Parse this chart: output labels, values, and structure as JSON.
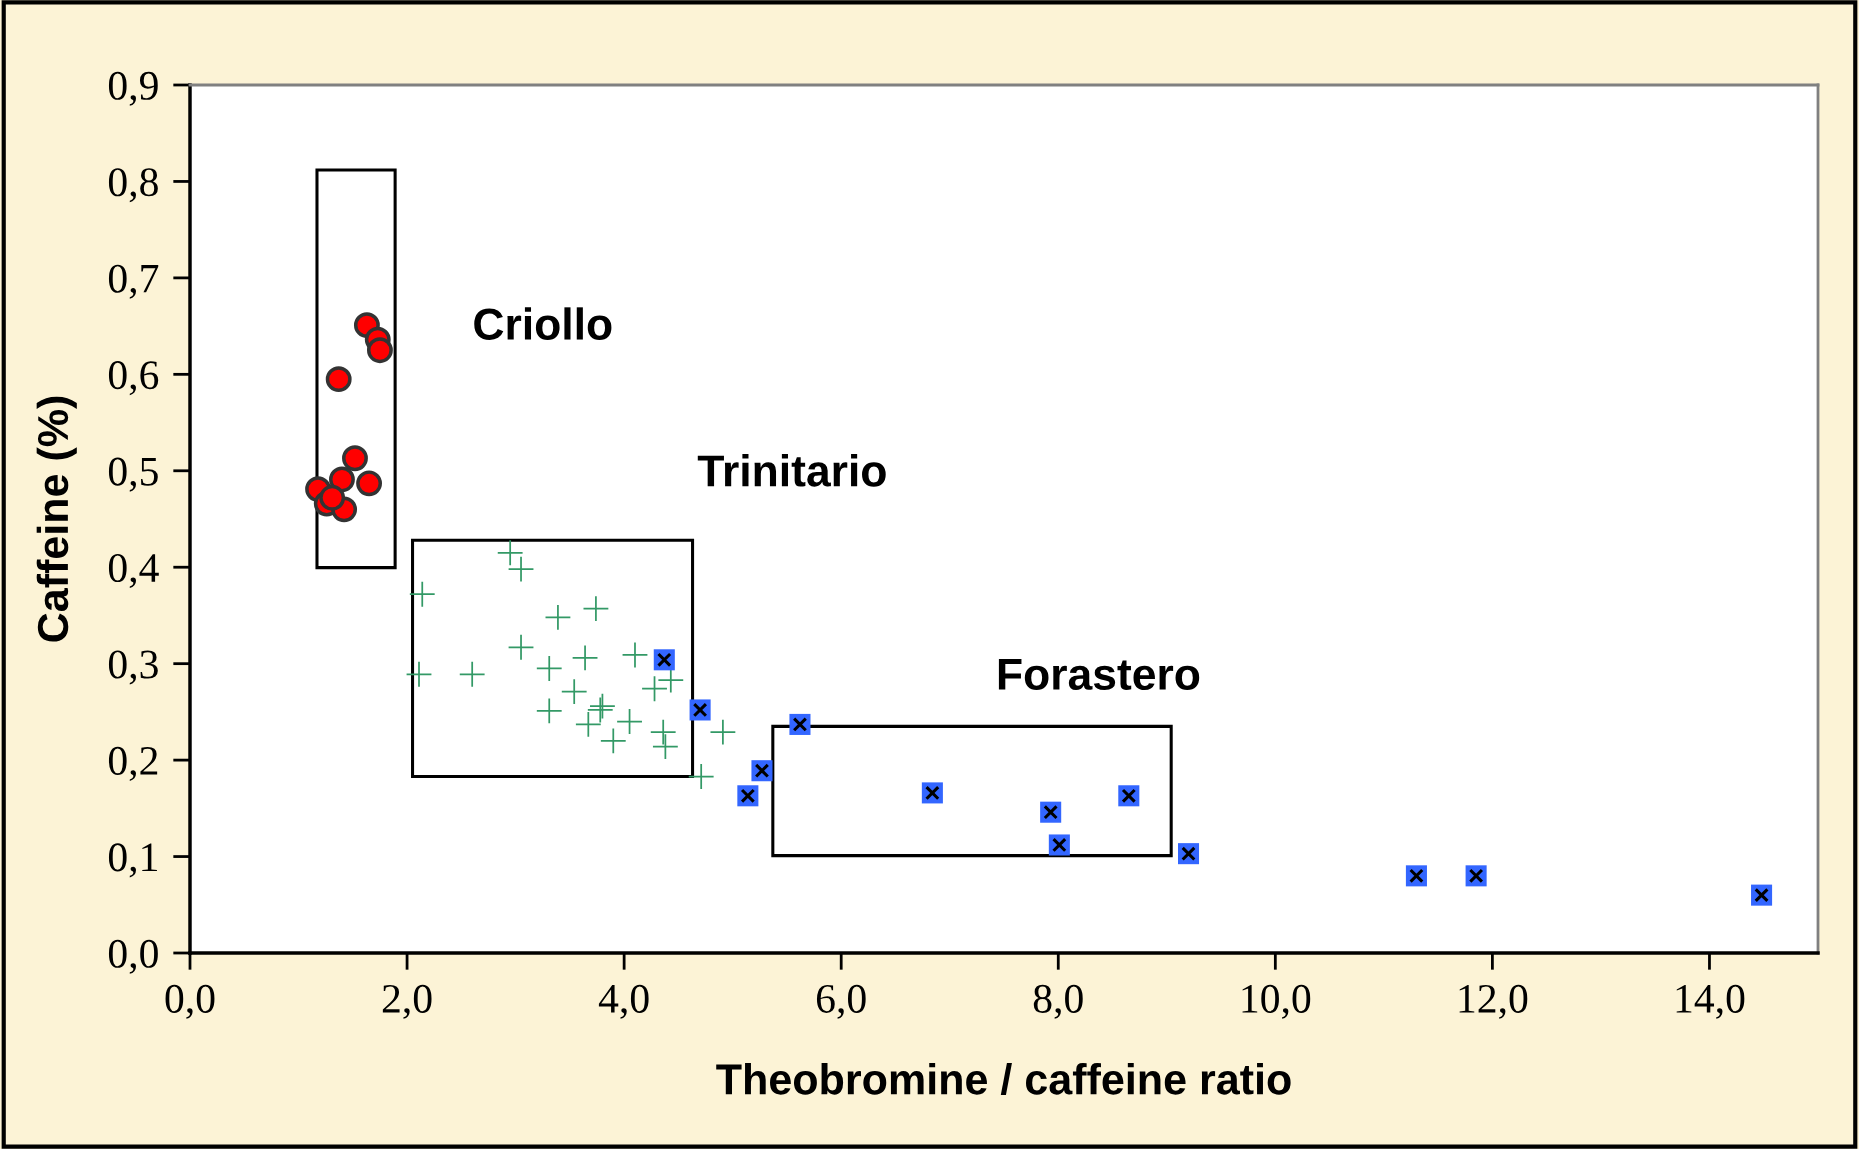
{
  "chart_data": {
    "type": "scatter",
    "xlabel": "Theobromine / caffeine ratio",
    "ylabel": "Caffeine (%)",
    "xlim": [
      0,
      15
    ],
    "ylim": [
      0,
      0.9
    ],
    "xticks": [
      {
        "value": 0,
        "label": "0,0"
      },
      {
        "value": 2,
        "label": "2,0"
      },
      {
        "value": 4,
        "label": "4,0"
      },
      {
        "value": 6,
        "label": "6,0"
      },
      {
        "value": 8,
        "label": "8,0"
      },
      {
        "value": 10,
        "label": "10,0"
      },
      {
        "value": 12,
        "label": "12,0"
      },
      {
        "value": 14,
        "label": "14,0"
      }
    ],
    "yticks": [
      {
        "value": 0,
        "label": "0,0"
      },
      {
        "value": 0.1,
        "label": "0,1"
      },
      {
        "value": 0.2,
        "label": "0,2"
      },
      {
        "value": 0.3,
        "label": "0,3"
      },
      {
        "value": 0.4,
        "label": "0,4"
      },
      {
        "value": 0.5,
        "label": "0,5"
      },
      {
        "value": 0.6,
        "label": "0,6"
      },
      {
        "value": 0.7,
        "label": "0,7"
      },
      {
        "value": 0.8,
        "label": "0,8"
      },
      {
        "value": 0.9,
        "label": "0,9"
      }
    ],
    "grid": false,
    "legend": false,
    "series": [
      {
        "color": "#ff0000",
        "marker": "circle",
        "x": [
          1.63,
          1.73,
          1.75,
          1.37,
          1.52,
          1.18,
          1.65,
          1.4,
          1.26,
          1.42,
          1.31
        ],
        "values": [
          0.651,
          0.636,
          0.625,
          0.595,
          0.513,
          0.481,
          0.487,
          0.491,
          0.466,
          0.46,
          0.472
        ]
      },
      {
        "color": "#339966",
        "marker": "cross",
        "x": [
          2.95,
          3.05,
          2.14,
          3.39,
          3.74,
          3.05,
          2.11,
          2.6,
          3.31,
          3.64,
          4.1,
          3.54,
          4.28,
          4.43,
          3.31,
          3.78,
          3.67,
          3.8,
          4.05,
          3.9,
          4.36,
          4.38,
          4.91,
          4.71
        ],
        "values": [
          0.415,
          0.398,
          0.372,
          0.348,
          0.357,
          0.317,
          0.289,
          0.289,
          0.295,
          0.306,
          0.309,
          0.271,
          0.274,
          0.283,
          0.251,
          0.252,
          0.237,
          0.256,
          0.24,
          0.22,
          0.229,
          0.214,
          0.229,
          0.183
        ]
      },
      {
        "color": "#3366ff",
        "marker": "square",
        "x": [
          4.37,
          4.7,
          5.62,
          5.27,
          5.14,
          6.84,
          7.93,
          8.01,
          8.65,
          9.2,
          11.3,
          11.85,
          14.48
        ],
        "values": [
          0.304,
          0.252,
          0.237,
          0.189,
          0.163,
          0.166,
          0.146,
          0.112,
          0.163,
          0.103,
          0.08,
          0.08,
          0.06
        ]
      }
    ],
    "annotations": [
      "Criollo",
      "Trinitario",
      "Forastero"
    ]
  }
}
